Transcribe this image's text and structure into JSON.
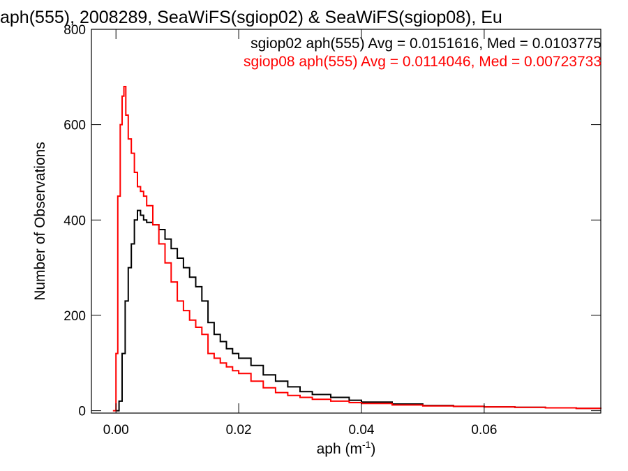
{
  "chart_data": {
    "type": "line",
    "title": "aph(555), 2008289, SeaWiFS(sgiop02) & SeaWiFS(sgiop08), Eu",
    "xlabel": "aph (m",
    "xlabel_sup": "-1",
    "xlabel_tail": ")",
    "ylabel": "Number of Observations",
    "xlim": [
      -0.004,
      0.079
    ],
    "ylim": [
      -5,
      800
    ],
    "xticks": [
      0.0,
      0.02,
      0.04,
      0.06
    ],
    "xtick_labels": [
      "0.00",
      "0.02",
      "0.04",
      "0.06"
    ],
    "yticks": [
      0,
      200,
      400,
      600,
      800
    ],
    "ytick_labels": [
      "0",
      "200",
      "400",
      "600",
      "800"
    ],
    "grid": false,
    "legend_placement": "top-right",
    "series": [
      {
        "name": "sgiop02 aph(555) Avg = 0.0151616, Med = 0.0103775",
        "color": "#000000",
        "x": [
          0.0,
          0.0005,
          0.001,
          0.0015,
          0.002,
          0.0025,
          0.003,
          0.0035,
          0.004,
          0.0045,
          0.005,
          0.006,
          0.007,
          0.008,
          0.009,
          0.01,
          0.011,
          0.012,
          0.013,
          0.014,
          0.015,
          0.016,
          0.017,
          0.018,
          0.019,
          0.02,
          0.022,
          0.024,
          0.026,
          0.028,
          0.03,
          0.032,
          0.035,
          0.038,
          0.04,
          0.045,
          0.05,
          0.055,
          0.06,
          0.065,
          0.07,
          0.075,
          0.079
        ],
        "y": [
          0,
          20,
          120,
          230,
          300,
          350,
          400,
          420,
          410,
          400,
          395,
          390,
          380,
          360,
          340,
          320,
          300,
          280,
          260,
          230,
          185,
          160,
          145,
          130,
          120,
          110,
          95,
          75,
          62,
          50,
          40,
          34,
          28,
          22,
          18,
          14,
          11,
          9,
          8,
          7,
          6,
          5,
          4
        ]
      },
      {
        "name": "sgiop08 aph(555) Avg = 0.0114046, Med = 0.00723733",
        "color": "#ff0000",
        "x": [
          -0.0005,
          0.0,
          0.0003,
          0.0007,
          0.001,
          0.0013,
          0.0016,
          0.002,
          0.0025,
          0.003,
          0.0035,
          0.004,
          0.0045,
          0.005,
          0.006,
          0.007,
          0.008,
          0.009,
          0.01,
          0.011,
          0.012,
          0.013,
          0.014,
          0.015,
          0.016,
          0.017,
          0.018,
          0.019,
          0.02,
          0.022,
          0.024,
          0.026,
          0.028,
          0.03,
          0.032,
          0.035,
          0.038,
          0.04,
          0.045,
          0.05,
          0.055,
          0.06,
          0.065,
          0.07,
          0.075,
          0.079
        ],
        "y": [
          0,
          120,
          450,
          600,
          660,
          680,
          620,
          570,
          540,
          500,
          470,
          460,
          450,
          430,
          390,
          350,
          310,
          270,
          230,
          210,
          190,
          175,
          160,
          120,
          110,
          100,
          92,
          84,
          78,
          62,
          48,
          38,
          32,
          28,
          24,
          20,
          17,
          15,
          12,
          10,
          9,
          8,
          7,
          6,
          5,
          4
        ]
      }
    ]
  }
}
